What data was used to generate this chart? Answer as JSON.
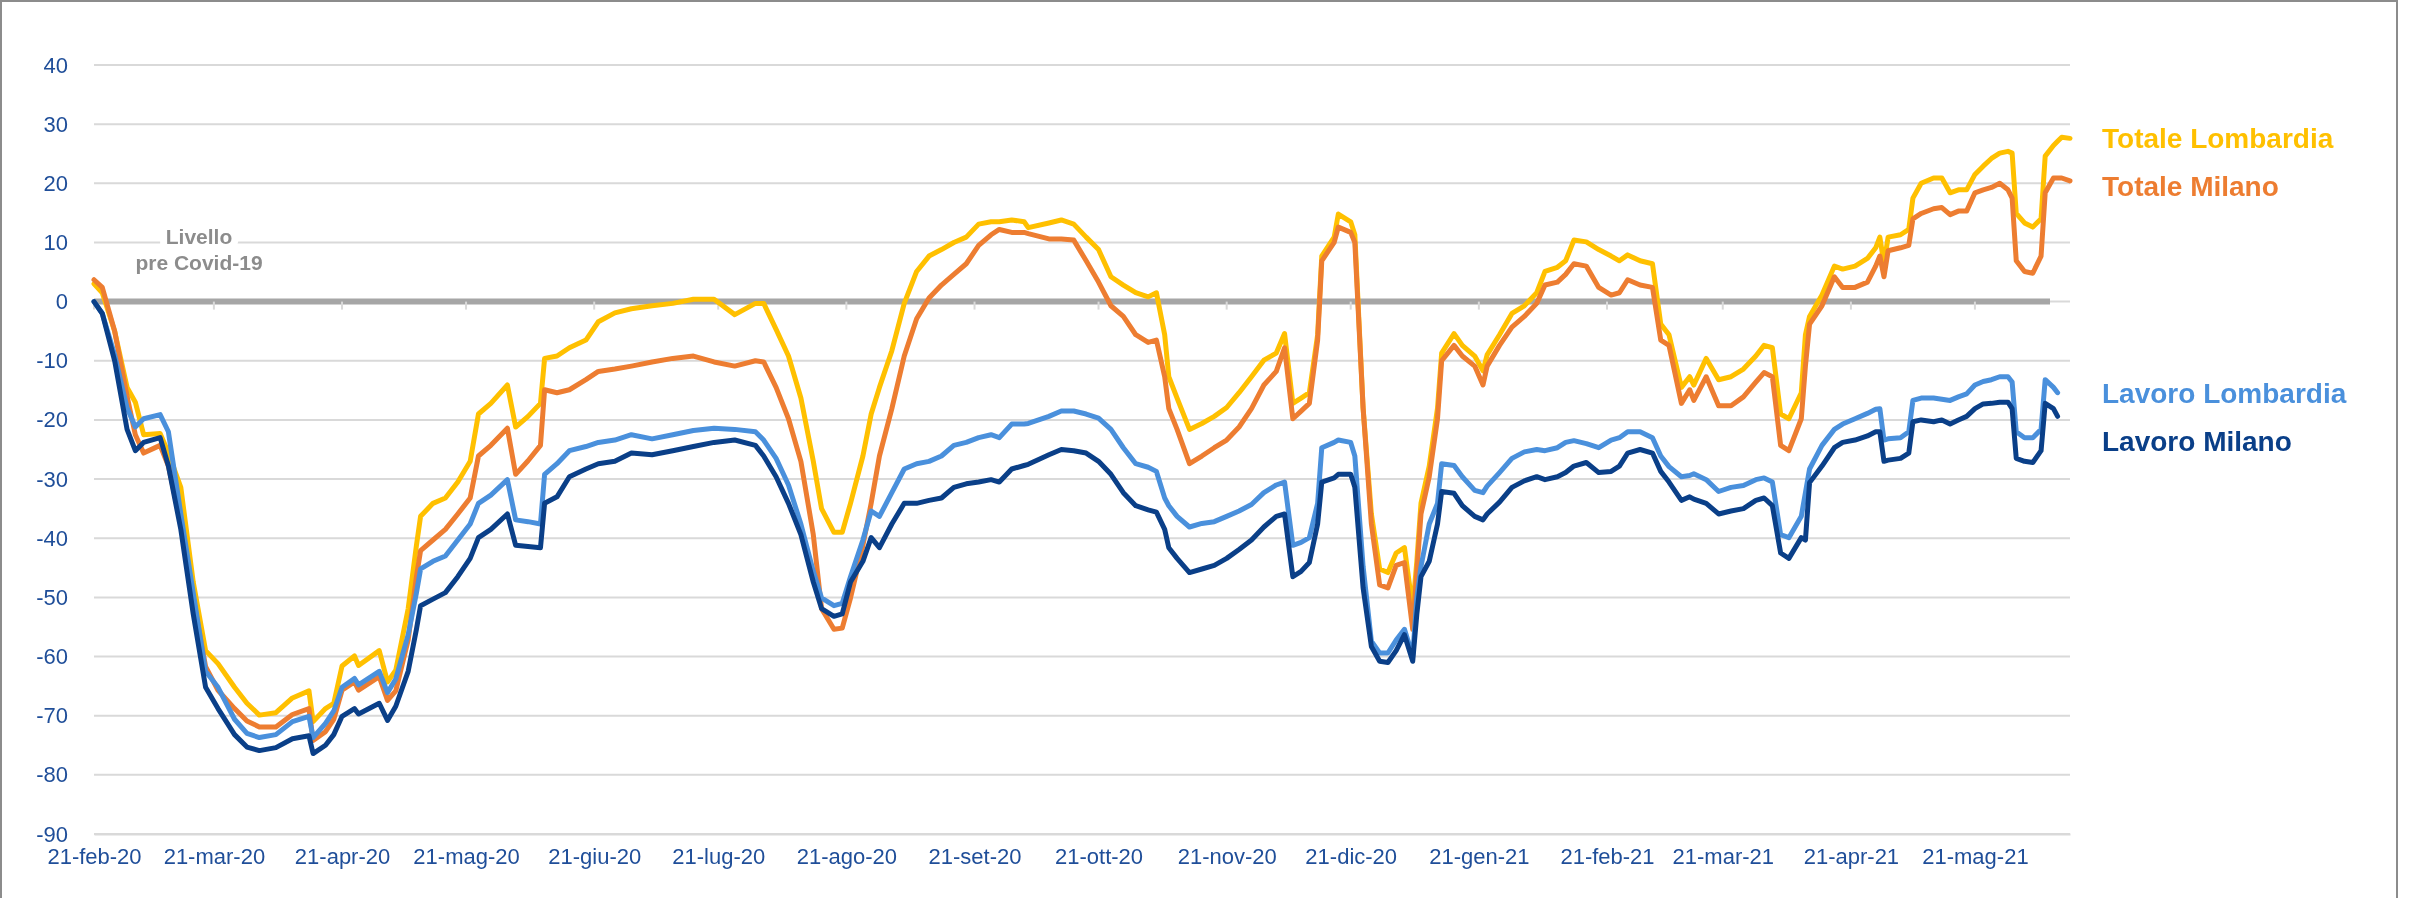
{
  "chart_data": {
    "type": "line",
    "legend": "right",
    "grid": "y",
    "xlim": [
      "2020-02-21",
      "2021-06-13"
    ],
    "xticks": [
      {
        "value": "2020-02-21",
        "label": "21-feb-20"
      },
      {
        "value": "2020-03-21",
        "label": "21-mar-20"
      },
      {
        "value": "2020-04-21",
        "label": "21-apr-20"
      },
      {
        "value": "2020-05-21",
        "label": "21-mag-20"
      },
      {
        "value": "2020-06-21",
        "label": "21-giu-20"
      },
      {
        "value": "2020-07-21",
        "label": "21-lug-20"
      },
      {
        "value": "2020-08-21",
        "label": "21-ago-20"
      },
      {
        "value": "2020-09-21",
        "label": "21-set-20"
      },
      {
        "value": "2020-10-21",
        "label": "21-ott-20"
      },
      {
        "value": "2020-11-21",
        "label": "21-nov-20"
      },
      {
        "value": "2020-12-21",
        "label": "21-dic-20"
      },
      {
        "value": "2021-01-21",
        "label": "21-gen-21"
      },
      {
        "value": "2021-02-21",
        "label": "21-feb-21"
      },
      {
        "value": "2021-03-21",
        "label": "21-mar-21"
      },
      {
        "value": "2021-04-21",
        "label": "21-apr-21"
      },
      {
        "value": "2021-05-21",
        "label": "21-mag-21"
      }
    ],
    "ylim": [
      -90,
      40
    ],
    "yticks": [
      -90,
      -80,
      -70,
      -60,
      -50,
      -40,
      -30,
      -20,
      -10,
      0,
      10,
      20,
      30,
      40
    ],
    "ref_lines": [
      {
        "axis": "y",
        "value": 0,
        "label": "Livello pre Covid-19",
        "color": "#a6a6a6"
      }
    ],
    "x": [
      "2020-02-21",
      "2020-02-23",
      "2020-02-26",
      "2020-02-29",
      "2020-03-02",
      "2020-03-04",
      "2020-03-08",
      "2020-03-10",
      "2020-03-13",
      "2020-03-16",
      "2020-03-19",
      "2020-03-22",
      "2020-03-26",
      "2020-03-29",
      "2020-04-01",
      "2020-04-05",
      "2020-04-09",
      "2020-04-13",
      "2020-04-14",
      "2020-04-17",
      "2020-04-19",
      "2020-04-21",
      "2020-04-24",
      "2020-04-25",
      "2020-04-30",
      "2020-05-02",
      "2020-05-04",
      "2020-05-07",
      "2020-05-09",
      "2020-05-10",
      "2020-05-13",
      "2020-05-16",
      "2020-05-19",
      "2020-05-22",
      "2020-05-24",
      "2020-05-27",
      "2020-05-31",
      "2020-06-02",
      "2020-06-05",
      "2020-06-08",
      "2020-06-09",
      "2020-06-12",
      "2020-06-15",
      "2020-06-19",
      "2020-06-22",
      "2020-06-26",
      "2020-06-30",
      "2020-07-05",
      "2020-07-10",
      "2020-07-15",
      "2020-07-20",
      "2020-07-25",
      "2020-07-30",
      "2020-08-01",
      "2020-08-04",
      "2020-08-07",
      "2020-08-10",
      "2020-08-13",
      "2020-08-15",
      "2020-08-18",
      "2020-08-20",
      "2020-08-22",
      "2020-08-25",
      "2020-08-27",
      "2020-08-29",
      "2020-09-01",
      "2020-09-04",
      "2020-09-07",
      "2020-09-10",
      "2020-09-13",
      "2020-09-16",
      "2020-09-19",
      "2020-09-22",
      "2020-09-25",
      "2020-09-27",
      "2020-09-30",
      "2020-10-03",
      "2020-10-04",
      "2020-10-09",
      "2020-10-12",
      "2020-10-15",
      "2020-10-18",
      "2020-10-21",
      "2020-10-24",
      "2020-10-27",
      "2020-10-30",
      "2020-11-02",
      "2020-11-04",
      "2020-11-06",
      "2020-11-07",
      "2020-11-09",
      "2020-11-12",
      "2020-11-15",
      "2020-11-18",
      "2020-11-21",
      "2020-11-24",
      "2020-11-27",
      "2020-11-30",
      "2020-12-03",
      "2020-12-05",
      "2020-12-07",
      "2020-12-09",
      "2020-12-11",
      "2020-12-13",
      "2020-12-14",
      "2020-12-17",
      "2020-12-18",
      "2020-12-21",
      "2020-12-22",
      "2020-12-24",
      "2020-12-26",
      "2020-12-28",
      "2020-12-30",
      "2021-01-01",
      "2021-01-03",
      "2021-01-05",
      "2021-01-06",
      "2021-01-07",
      "2021-01-09",
      "2021-01-11",
      "2021-01-12",
      "2021-01-15",
      "2021-01-17",
      "2021-01-20",
      "2021-01-22",
      "2021-01-23",
      "2021-01-26",
      "2021-01-29",
      "2021-02-01",
      "2021-02-04",
      "2021-02-06",
      "2021-02-09",
      "2021-02-11",
      "2021-02-13",
      "2021-02-16",
      "2021-02-19",
      "2021-02-22",
      "2021-02-24",
      "2021-02-26",
      "2021-03-01",
      "2021-03-04",
      "2021-03-06",
      "2021-03-08",
      "2021-03-11",
      "2021-03-13",
      "2021-03-14",
      "2021-03-17",
      "2021-03-20",
      "2021-03-23",
      "2021-03-26",
      "2021-03-29",
      "2021-03-31",
      "2021-04-02",
      "2021-04-04",
      "2021-04-06",
      "2021-04-09",
      "2021-04-10",
      "2021-04-11",
      "2021-04-14",
      "2021-04-17",
      "2021-04-19",
      "2021-04-22",
      "2021-04-25",
      "2021-04-27",
      "2021-04-28",
      "2021-04-29",
      "2021-04-30",
      "2021-05-03",
      "2021-05-05",
      "2021-05-06",
      "2021-05-08",
      "2021-05-11",
      "2021-05-13",
      "2021-05-15",
      "2021-05-17",
      "2021-05-19",
      "2021-05-21",
      "2021-05-23",
      "2021-05-25",
      "2021-05-27",
      "2021-05-29",
      "2021-05-30",
      "2021-05-31",
      "2021-06-02",
      "2021-06-04",
      "2021-06-06",
      "2021-06-07",
      "2021-06-09",
      "2021-06-10",
      "2021-06-11",
      "2021-06-13"
    ],
    "series": [
      {
        "name": "Totale Lombardia",
        "color": "#ffc000",
        "values": [
          3,
          1.5,
          -5,
          -14.5,
          -17,
          -22.5,
          -22.3,
          -25.6,
          -31.4,
          -47.4,
          -59,
          -61.2,
          -65.2,
          -67.9,
          -69.9,
          -69.5,
          -67,
          -65.8,
          -71,
          -68.8,
          -67.9,
          -61.6,
          -59.9,
          -61.5,
          -59,
          -64.3,
          -62.3,
          -51.9,
          -41.2,
          -36.3,
          -34.1,
          -33.2,
          -30.5,
          -27,
          -19,
          -17.2,
          -14.1,
          -21.2,
          -19.4,
          -17.2,
          -9.6,
          -9.2,
          -7.8,
          -6.5,
          -3.4,
          -1.9,
          -1.2,
          -0.7,
          -0.3,
          0.4,
          0.4,
          -2.2,
          -0.3,
          -0.3,
          -4.7,
          -9.2,
          -16.3,
          -27,
          -35,
          -39,
          -39,
          -34.1,
          -26.1,
          -19,
          -14.5,
          -8.3,
          -0.3,
          5.1,
          7.7,
          8.8,
          10,
          10.9,
          13.1,
          13.5,
          13.5,
          13.8,
          13.5,
          12.5,
          13.3,
          13.8,
          13.1,
          10.9,
          8.8,
          4.2,
          2.8,
          1.5,
          0.8,
          1.5,
          -5.6,
          -12.7,
          -16.3,
          -21.6,
          -20.6,
          -19.4,
          -17.9,
          -15.4,
          -12.7,
          -9.9,
          -8.7,
          -5.4,
          -17.2,
          -16.3,
          -15.4,
          -5.6,
          7.7,
          10.9,
          14.8,
          13.5,
          11.3,
          -18,
          -35.9,
          -45.2,
          -45.8,
          -42.5,
          -41.6,
          -51.9,
          -43.9,
          -34.1,
          -27.8,
          -18,
          -8.7,
          -5.4,
          -7.4,
          -9.2,
          -11.7,
          -9,
          -5.6,
          -2,
          -0.7,
          1.5,
          5.1,
          5.8,
          6.9,
          10.4,
          10.1,
          8.8,
          7.7,
          6.9,
          7.9,
          6.9,
          6.4,
          -3.8,
          -5.6,
          -14.5,
          -12.7,
          -14.1,
          -9.6,
          -13.2,
          -12.7,
          -11.4,
          -9.2,
          -7.4,
          -7.8,
          -19,
          -19.8,
          -15.4,
          -5.6,
          -2.5,
          1.1,
          6,
          5.5,
          6,
          7.3,
          9.1,
          10.9,
          6.4,
          10.9,
          11.3,
          12.2,
          17.5,
          20,
          20.9,
          20.9,
          18.4,
          18.9,
          18.9,
          21.5,
          22.9,
          24.2,
          25.1,
          25.4,
          25.1,
          14.9,
          13.3,
          12.6,
          14,
          24.6,
          26.4,
          27.1,
          27.8,
          27.6
        ]
      },
      {
        "name": "Totale Milano",
        "color": "#ed7d31",
        "values": [
          3.7,
          2.4,
          -5,
          -16,
          -22.5,
          -25.6,
          -24.3,
          -27.8,
          -37.6,
          -50.1,
          -61.7,
          -65.7,
          -68.8,
          -70.9,
          -71.9,
          -71.9,
          -69.8,
          -68.8,
          -74.2,
          -72.7,
          -70.6,
          -65.7,
          -64.3,
          -65.7,
          -63.4,
          -67.4,
          -65.8,
          -57.2,
          -46.5,
          -42.1,
          -40.3,
          -38.5,
          -35.9,
          -33.2,
          -26.1,
          -24.3,
          -21.4,
          -29.2,
          -26.9,
          -24.3,
          -14.9,
          -15.4,
          -14.9,
          -13.2,
          -11.8,
          -11.4,
          -10.9,
          -10.2,
          -9.6,
          -9.2,
          -10.2,
          -10.9,
          -10,
          -10.2,
          -14.5,
          -19.8,
          -27,
          -39.4,
          -51.9,
          -55.4,
          -55.2,
          -50.1,
          -41.2,
          -34.1,
          -26.1,
          -18.1,
          -9.2,
          -2.9,
          0.6,
          2.8,
          4.6,
          6.4,
          9.5,
          11.3,
          12.2,
          11.7,
          11.7,
          11.5,
          10.6,
          10.6,
          10.4,
          6.9,
          3.3,
          -0.7,
          -2.5,
          -5.6,
          -6.9,
          -6.5,
          -12.7,
          -18.1,
          -21.6,
          -27.4,
          -26.1,
          -24.7,
          -23.4,
          -21.2,
          -18.1,
          -14.1,
          -11.8,
          -7.8,
          -19.8,
          -18.5,
          -17.2,
          -6.5,
          6.9,
          10,
          12.6,
          11.7,
          10,
          -18,
          -37.6,
          -47.9,
          -48.4,
          -44.6,
          -44.1,
          -55.4,
          -45.6,
          -35.9,
          -29.6,
          -19.8,
          -10,
          -7.4,
          -9.2,
          -10.9,
          -14.1,
          -10.9,
          -7.4,
          -4.3,
          -2.5,
          -0.3,
          2.8,
          3.3,
          4.6,
          6.4,
          6,
          2.4,
          1.1,
          1.5,
          3.7,
          2.8,
          2.4,
          -6.5,
          -7.4,
          -17.2,
          -14.9,
          -16.7,
          -12.7,
          -17.6,
          -17.6,
          -16.1,
          -13.6,
          -12,
          -12.7,
          -24.3,
          -25.2,
          -19.8,
          -10.9,
          -3.8,
          -0.7,
          4.2,
          2.4,
          2.4,
          3.3,
          6,
          7.7,
          4.2,
          8.6,
          9.1,
          9.5,
          14,
          14.9,
          15.7,
          15.9,
          14.7,
          15.3,
          15.3,
          18.4,
          18.9,
          19.3,
          20,
          18.9,
          17.5,
          6.9,
          5.1,
          4.8,
          7.7,
          18.4,
          20.9,
          20.9,
          20.9,
          20.4
        ]
      },
      {
        "name": "Lavoro Lombardia",
        "color": "#4a90dc",
        "values": [
          0,
          -2,
          -9,
          -18,
          -21.2,
          -19.8,
          -19.1,
          -22,
          -35.9,
          -49.2,
          -62.5,
          -65.2,
          -70.6,
          -73,
          -73.7,
          -73.2,
          -71,
          -70.1,
          -73.7,
          -71.3,
          -69.2,
          -65.2,
          -63.7,
          -64.8,
          -62.5,
          -66.1,
          -63.8,
          -56.3,
          -49.2,
          -45.2,
          -43.9,
          -43,
          -40.3,
          -37.6,
          -34.1,
          -32.7,
          -30.1,
          -36.9,
          -37.2,
          -37.6,
          -29.2,
          -27.4,
          -25.2,
          -24.5,
          -23.8,
          -23.4,
          -22.5,
          -23.2,
          -22.5,
          -21.8,
          -21.4,
          -21.6,
          -22,
          -23.4,
          -26.5,
          -31,
          -37.6,
          -45.6,
          -50.1,
          -51.4,
          -51,
          -46.5,
          -40.3,
          -35.4,
          -36.3,
          -32.3,
          -28.3,
          -27.4,
          -27,
          -26.1,
          -24.3,
          -23.8,
          -23,
          -22.5,
          -23,
          -20.7,
          -20.7,
          -20.6,
          -19.4,
          -18.5,
          -18.5,
          -19,
          -19.7,
          -21.6,
          -24.7,
          -27.4,
          -28,
          -28.7,
          -33.2,
          -34.5,
          -36.3,
          -38.1,
          -37.5,
          -37.2,
          -36.3,
          -35.4,
          -34.3,
          -32.3,
          -31,
          -30.5,
          -41.2,
          -40.7,
          -39.9,
          -34.1,
          -24.7,
          -23.8,
          -23.4,
          -23.8,
          -26.1,
          -44.8,
          -57.4,
          -59.4,
          -59.4,
          -57.2,
          -55.4,
          -59.9,
          -50.1,
          -44.8,
          -37.6,
          -34.1,
          -27.4,
          -27.7,
          -29.6,
          -31.9,
          -32.3,
          -31.2,
          -28.9,
          -26.5,
          -25.4,
          -25,
          -25.2,
          -24.7,
          -23.8,
          -23.5,
          -24,
          -24.7,
          -23.4,
          -23,
          -22,
          -22,
          -23,
          -26.1,
          -27.9,
          -29.6,
          -29.4,
          -29.1,
          -30.1,
          -32.1,
          -31.4,
          -31.1,
          -30.1,
          -29.8,
          -30.5,
          -39.4,
          -39.9,
          -36.3,
          -32.3,
          -28.3,
          -24.3,
          -21.6,
          -20.7,
          -19.8,
          -18.9,
          -18.2,
          -18.1,
          -23.4,
          -23.2,
          -23,
          -22,
          -16.7,
          -16.3,
          -16.3,
          -16.5,
          -16.7,
          -16.1,
          -15.6,
          -14.1,
          -13.5,
          -13.2,
          -12.7,
          -12.7,
          -13.6,
          -22,
          -23,
          -23,
          -21.6,
          -13.2,
          -14.5,
          -15.4,
          null,
          null
        ]
      },
      {
        "name": "Lavoro Milano",
        "color": "#0a3f88",
        "values": [
          0,
          -2,
          -10,
          -21.6,
          -25.2,
          -23.8,
          -23,
          -27.8,
          -38.5,
          -52.8,
          -65.2,
          -68.8,
          -73.2,
          -75.3,
          -75.9,
          -75.4,
          -73.9,
          -73.4,
          -76.4,
          -75,
          -73.2,
          -70.1,
          -68.8,
          -69.7,
          -67.9,
          -70.8,
          -68.4,
          -62.5,
          -55.4,
          -51.4,
          -50.3,
          -49.2,
          -46.5,
          -43.4,
          -39.9,
          -38.5,
          -35.9,
          -41.2,
          -41.4,
          -41.6,
          -34.1,
          -33,
          -29.6,
          -28.3,
          -27.4,
          -27,
          -25.6,
          -25.9,
          -25.2,
          -24.5,
          -23.8,
          -23.4,
          -24.3,
          -26.1,
          -29.6,
          -34.1,
          -39.4,
          -47.4,
          -51.9,
          -53.2,
          -52.8,
          -47.4,
          -43.9,
          -39.9,
          -41.6,
          -37.6,
          -34.1,
          -34.1,
          -33.6,
          -33.2,
          -31.4,
          -30.8,
          -30.5,
          -30.1,
          -30.5,
          -28.3,
          -27.7,
          -27.5,
          -25.9,
          -25,
          -25.2,
          -25.6,
          -27,
          -29.2,
          -32.3,
          -34.5,
          -35.2,
          -35.6,
          -38.5,
          -41.6,
          -43.4,
          -45.8,
          -45.2,
          -44.6,
          -43.4,
          -41.9,
          -40.3,
          -38.1,
          -36.3,
          -35.9,
          -46.5,
          -45.6,
          -44.1,
          -37.6,
          -30.5,
          -29.8,
          -29.2,
          -29.2,
          -31.4,
          -48.4,
          -58.3,
          -60.8,
          -61,
          -59,
          -56.3,
          -60.8,
          -52.8,
          -46.5,
          -43.9,
          -37.6,
          -32.1,
          -32.4,
          -34.5,
          -36.3,
          -36.9,
          -35.9,
          -33.9,
          -31.4,
          -30.3,
          -29.6,
          -30.1,
          -29.6,
          -28.9,
          -27.8,
          -27.2,
          -28.9,
          -28.7,
          -27.8,
          -25.6,
          -25,
          -25.6,
          -28.7,
          -30.5,
          -33.6,
          -33,
          -33.4,
          -34.1,
          -35.9,
          -35.4,
          -35,
          -33.6,
          -33.2,
          -34.5,
          -42.5,
          -43.4,
          -39.9,
          -40.3,
          -30.6,
          -27.8,
          -24.7,
          -23.8,
          -23.4,
          -22.7,
          -22,
          -22,
          -27,
          -26.8,
          -26.5,
          -25.6,
          -20.3,
          -20,
          -20.3,
          -20,
          -20.7,
          -20,
          -19.4,
          -18.1,
          -17.3,
          -17.2,
          -17,
          -17,
          -18.1,
          -26.5,
          -27,
          -27.2,
          -25.2,
          -17.2,
          -18.1,
          -19.4,
          null,
          null
        ]
      }
    ]
  }
}
